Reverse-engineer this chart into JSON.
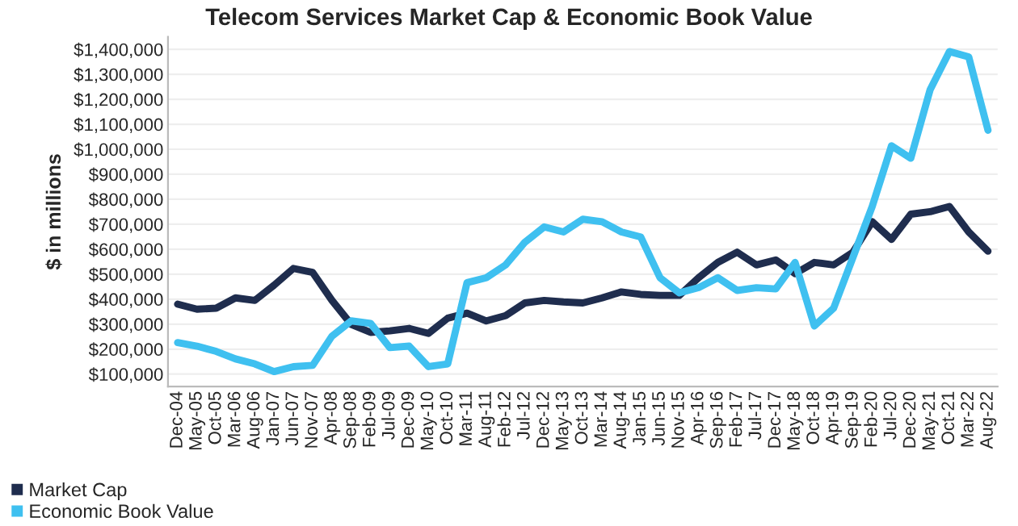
{
  "chart_data": {
    "type": "line",
    "title": "Telecom Services Market Cap & Economic Book Value",
    "ylabel": "$ in millions",
    "categories": [
      "Dec-04",
      "May-05",
      "Oct-05",
      "Mar-06",
      "Aug-06",
      "Jan-07",
      "Jun-07",
      "Nov-07",
      "Apr-08",
      "Sep-08",
      "Feb-09",
      "Jul-09",
      "Dec-09",
      "May-10",
      "Oct-10",
      "Mar-11",
      "Aug-11",
      "Feb-12",
      "Jul-12",
      "Dec-12",
      "May-13",
      "Oct-13",
      "Mar-14",
      "Aug-14",
      "Jan-15",
      "Jun-15",
      "Nov-15",
      "Apr-16",
      "Sep-16",
      "Feb-17",
      "Jul-17",
      "Dec-17",
      "May-18",
      "Oct-18",
      "Apr-19",
      "Sep-19",
      "Feb-20",
      "Jul-20",
      "Dec-20",
      "May-21",
      "Oct-21",
      "Mar-22",
      "Aug-22"
    ],
    "series": [
      {
        "name": "Market Cap",
        "color": "#1f2d4e",
        "values": [
          380000,
          360000,
          364000,
          405000,
          395000,
          456000,
          523000,
          507000,
          395000,
          299000,
          267000,
          273000,
          283000,
          263000,
          324000,
          344000,
          313000,
          334000,
          385000,
          395000,
          389000,
          385000,
          405000,
          429000,
          419000,
          415000,
          415000,
          486000,
          547000,
          588000,
          537000,
          557000,
          502000,
          547000,
          537000,
          588000,
          710000,
          639000,
          740000,
          750000,
          771000,
          669000,
          592000
        ]
      },
      {
        "name": "Economic Book Value",
        "color": "#3fc0f0",
        "values": [
          226000,
          212000,
          191000,
          161000,
          141000,
          110000,
          130000,
          135000,
          252000,
          313000,
          303000,
          206000,
          212000,
          130000,
          141000,
          466000,
          486000,
          537000,
          628000,
          689000,
          669000,
          720000,
          710000,
          669000,
          649000,
          486000,
          425000,
          446000,
          486000,
          435000,
          446000,
          441000,
          547000,
          293000,
          364000,
          567000,
          771000,
          1014000,
          964000,
          1238000,
          1391000,
          1370000,
          1076000
        ]
      }
    ],
    "ylim": [
      50000,
      1450000
    ],
    "yticks": [
      {
        "value": 100000,
        "label": "$100,000"
      },
      {
        "value": 200000,
        "label": "$200,000"
      },
      {
        "value": 300000,
        "label": "$300,000"
      },
      {
        "value": 400000,
        "label": "$400,000"
      },
      {
        "value": 500000,
        "label": "$500,000"
      },
      {
        "value": 600000,
        "label": "$600,000"
      },
      {
        "value": 700000,
        "label": "$700,000"
      },
      {
        "value": 800000,
        "label": "$800,000"
      },
      {
        "value": 900000,
        "label": "$900,000"
      },
      {
        "value": 1000000,
        "label": "$1,000,000"
      },
      {
        "value": 1100000,
        "label": "$1,100,000"
      },
      {
        "value": 1200000,
        "label": "$1,200,000"
      },
      {
        "value": 1300000,
        "label": "$1,300,000"
      },
      {
        "value": 1400000,
        "label": "$1,400,000"
      }
    ],
    "grid": "y",
    "legend": "bottom left",
    "marker": "none",
    "line_style": "solid"
  }
}
